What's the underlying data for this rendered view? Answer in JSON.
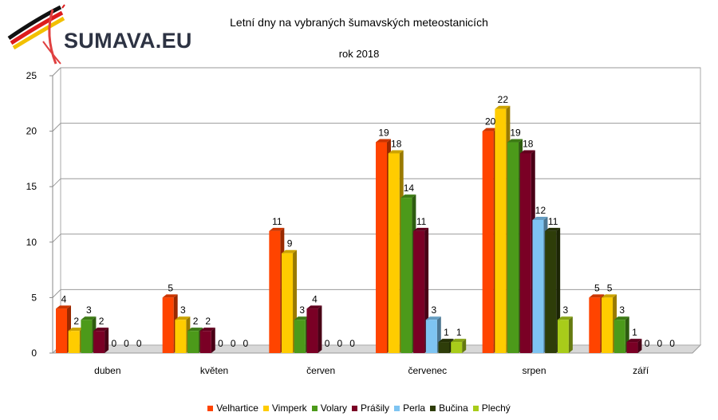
{
  "logo": {
    "text": "SUMAVA.EU"
  },
  "chart_data": {
    "type": "bar",
    "title": "Letní dny na vybraných šumavských meteostanicích",
    "subtitle": "rok 2018",
    "categories": [
      "duben",
      "květen",
      "červen",
      "červenec",
      "srpen",
      "září"
    ],
    "ylim": [
      0,
      25
    ],
    "yticks": [
      0,
      5,
      10,
      15,
      20,
      25
    ],
    "grid": true,
    "legend_position": "bottom",
    "series": [
      {
        "name": "Velhartice",
        "color": "#ff4400",
        "values": [
          4,
          5,
          11,
          19,
          20,
          5
        ]
      },
      {
        "name": "Vimperk",
        "color": "#ffcc00",
        "values": [
          2,
          3,
          9,
          18,
          22,
          5
        ]
      },
      {
        "name": "Volary",
        "color": "#4c9a1a",
        "values": [
          3,
          2,
          3,
          14,
          19,
          3
        ]
      },
      {
        "name": "Prášily",
        "color": "#7a0025",
        "values": [
          2,
          2,
          4,
          11,
          18,
          1
        ]
      },
      {
        "name": "Perla",
        "color": "#7ec4f2",
        "values": [
          0,
          0,
          0,
          3,
          12,
          0
        ]
      },
      {
        "name": "Bučina",
        "color": "#2e3d09",
        "values": [
          0,
          0,
          0,
          1,
          11,
          0
        ]
      },
      {
        "name": "Plechý",
        "color": "#a8cc1a",
        "values": [
          0,
          0,
          0,
          1,
          3,
          0
        ]
      }
    ]
  }
}
